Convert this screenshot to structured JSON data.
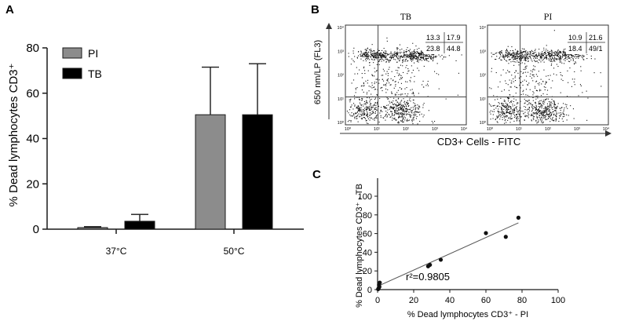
{
  "panels": {
    "A": "A",
    "B": "B",
    "C": "C"
  },
  "chart_data": [
    {
      "type": "bar",
      "panel": "A",
      "ylabel": "% Dead lymphocytes CD3⁺",
      "ylim": [
        0,
        80
      ],
      "yticks": [
        "0",
        "20",
        "40",
        "60",
        "80"
      ],
      "categories": [
        "37°C",
        "50°C"
      ],
      "legend": "top-left",
      "series": [
        {
          "name": "PI",
          "color": "#8c8c8c",
          "values": [
            0.7,
            50.5
          ],
          "error": [
            0.4,
            21.0
          ]
        },
        {
          "name": "TB",
          "color": "#000000",
          "values": [
            3.5,
            50.5
          ],
          "error": [
            3.0,
            22.5
          ]
        }
      ]
    },
    {
      "type": "scatter",
      "panel": "B",
      "kind": "flow cytometry dot plots",
      "ylabel": "650 nm/LP (FL3)",
      "xlabel": "CD3+ Cells - FITC",
      "tick_labels": [
        "10⁰",
        "10¹",
        "10²",
        "10³",
        "10⁴"
      ],
      "plots": [
        {
          "title": "TB",
          "quadrants": {
            "upper_left": "13.3",
            "upper_right": "17.9",
            "lower_left": "23.8",
            "lower_right": "44.8"
          }
        },
        {
          "title": "PI",
          "quadrants": {
            "upper_left": "10.9",
            "upper_right": "21.6",
            "lower_left": "18.4",
            "lower_right": "49/1"
          }
        }
      ]
    },
    {
      "type": "scatter",
      "panel": "C",
      "xlabel": "% Dead lymphocytes CD3⁺ - PI",
      "ylabel": "% Dead lymphocytes CD3⁺ - TB",
      "xlim": [
        0,
        100
      ],
      "ylim": [
        0,
        100
      ],
      "xticks": [
        "0",
        "20",
        "40",
        "60",
        "80",
        "100"
      ],
      "yticks": [
        "0",
        "20",
        "40",
        "60",
        "80",
        "100"
      ],
      "annotation": "r²=0.9805",
      "points": [
        [
          0.3,
          0.5
        ],
        [
          0.6,
          1.5
        ],
        [
          1.0,
          3.0
        ],
        [
          0.8,
          5.0
        ],
        [
          1.2,
          7.5
        ],
        [
          28,
          25
        ],
        [
          29,
          26.5
        ],
        [
          35,
          32
        ],
        [
          60,
          60.5
        ],
        [
          71,
          56.5
        ],
        [
          78,
          77
        ]
      ],
      "fit_line": [
        [
          0,
          3.5
        ],
        [
          78,
          71.5
        ]
      ]
    }
  ]
}
